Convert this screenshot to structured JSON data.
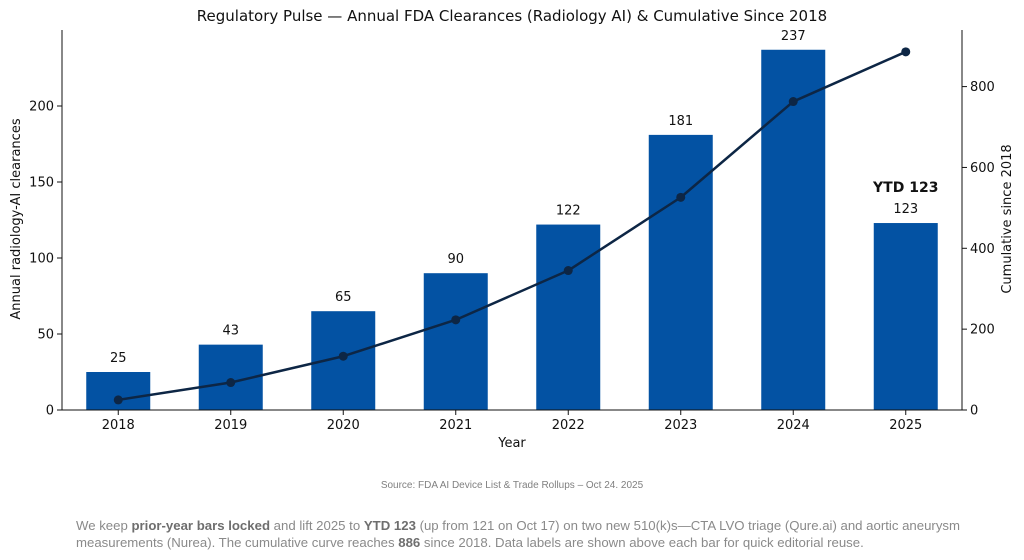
{
  "chart_data": {
    "type": "bar+line",
    "title": "Regulatory Pulse — Annual FDA Clearances (Radiology AI) & Cumulative Since 2018",
    "xlabel": "Year",
    "ylabel": "Annual radiology-AI clearances",
    "y2label": "Cumulative since 2018",
    "categories": [
      "2018",
      "2019",
      "2020",
      "2021",
      "2022",
      "2023",
      "2024",
      "2025"
    ],
    "series": [
      {
        "kind": "bar",
        "axis": "left",
        "values": [
          25,
          43,
          65,
          90,
          122,
          181,
          237,
          123
        ]
      },
      {
        "kind": "line",
        "axis": "right",
        "values": [
          25,
          68,
          133,
          223,
          345,
          526,
          763,
          886
        ]
      }
    ],
    "bar_labels": [
      "25",
      "43",
      "65",
      "90",
      "122",
      "181",
      "237",
      "123"
    ],
    "annotation": {
      "category": "2025",
      "text": "YTD 123"
    },
    "ylim": [
      0,
      250
    ],
    "yticks": [
      0,
      50,
      100,
      150,
      200
    ],
    "y2lim": [
      0,
      940
    ],
    "y2ticks": [
      0,
      200,
      400,
      600,
      800
    ],
    "grid": false,
    "colors": {
      "bar": "#0352a3",
      "line": "#0d2645",
      "marker": "#0d2645"
    }
  },
  "source": "Source: FDA AI Device List & Trade Rollups – Oct 24. 2025",
  "caption": [
    {
      "text": "We keep ",
      "bold": false
    },
    {
      "text": "prior-year bars locked",
      "bold": true
    },
    {
      "text": " and lift 2025 to ",
      "bold": false
    },
    {
      "text": "YTD 123",
      "bold": true
    },
    {
      "text": " (up from 121 on Oct 17) on two new 510(k)s—CTA LVO triage (Qure.ai) and aortic aneurysm measurements (Nurea). The cumulative curve reaches ",
      "bold": false
    },
    {
      "text": "886",
      "bold": true
    },
    {
      "text": " since 2018. Data labels are shown above each bar for quick editorial reuse.",
      "bold": false
    }
  ]
}
